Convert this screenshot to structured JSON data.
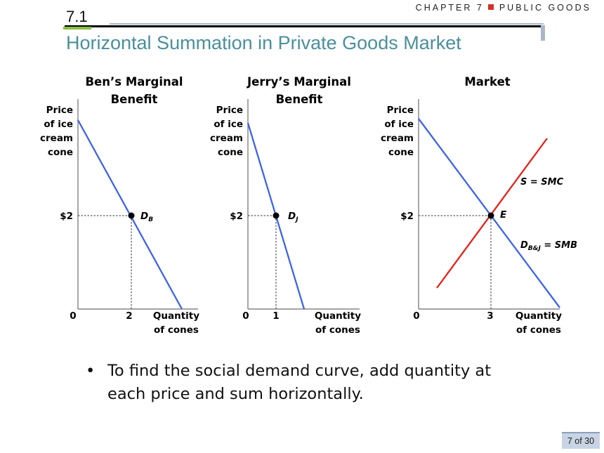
{
  "header": {
    "chapter": "CHAPTER 7",
    "section": "PUBLIC GOODS",
    "section_number": "7.1",
    "title": "Horizontal Summation in Private Goods Market",
    "accent_color": "#d4312b"
  },
  "panels": [
    {
      "title_line1": "Ben’s Marginal",
      "title_line2": "Benefit",
      "y_label": [
        "Price",
        "of ice",
        "cream",
        "cone"
      ],
      "x_label": [
        "Quantity",
        "of cones"
      ],
      "origin": "0",
      "price_tick": "$2",
      "quantity_tick": "2",
      "point_label_main": "D",
      "point_label_sub": "B"
    },
    {
      "title_line1": "Jerry’s Marginal",
      "title_line2": "Benefit",
      "y_label": [
        "Price",
        "of ice",
        "cream",
        "cone"
      ],
      "x_label": [
        "Quantity",
        "of cones"
      ],
      "origin": "0",
      "price_tick": "$2",
      "quantity_tick": "1",
      "point_label_main": "D",
      "point_label_sub": "J"
    },
    {
      "title_line1": "Market",
      "title_line2": "",
      "y_label": [
        "Price",
        "of ice",
        "cream",
        "cone"
      ],
      "x_label": [
        "Quantity",
        "of cones"
      ],
      "origin": "0",
      "price_tick": "$2",
      "quantity_tick": "3",
      "point_label": "E",
      "supply_label": "S = SMC",
      "demand_label_main": "D",
      "demand_label_sub": "B&J",
      "demand_label_rest": " = SMB",
      "demand_color": "#3d64e8",
      "supply_color": "#e8201a"
    }
  ],
  "bullet": "To find the social demand curve, add quantity at each price and sum horizontally.",
  "page": "7 of 30"
}
